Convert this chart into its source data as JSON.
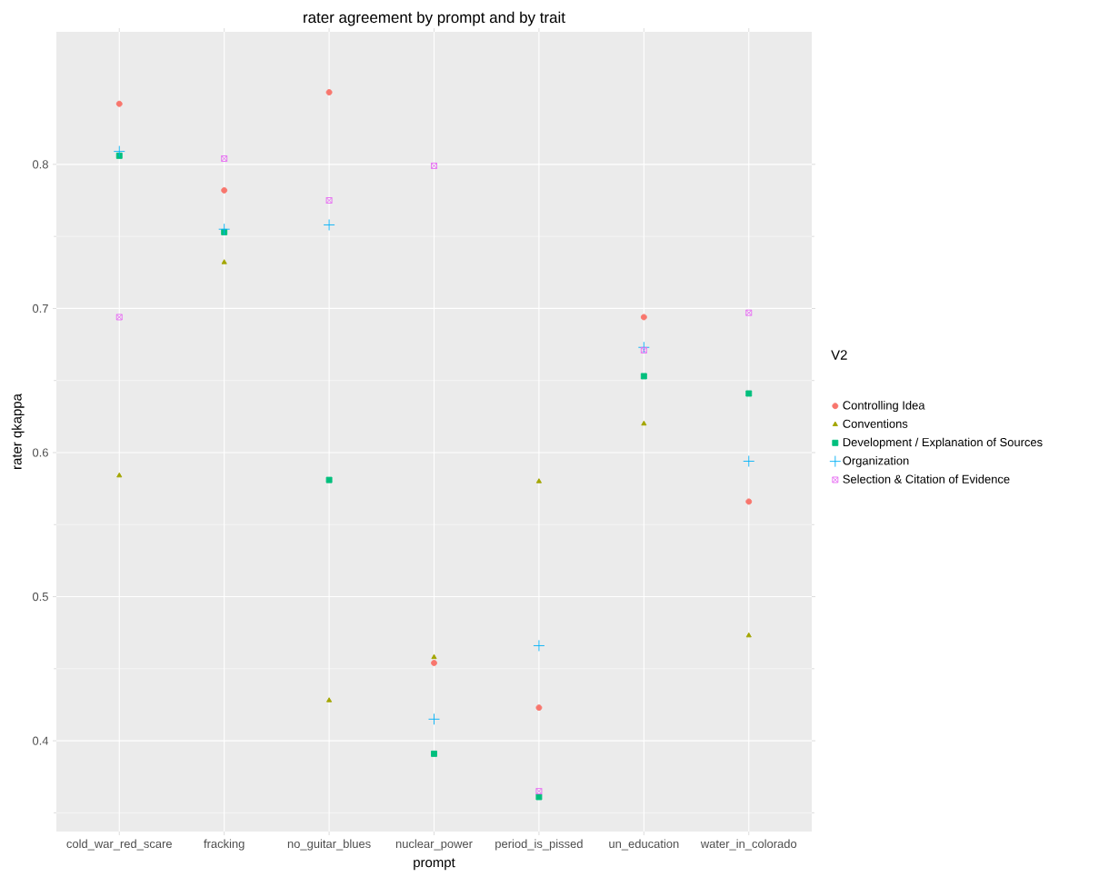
{
  "chart_data": {
    "type": "scatter",
    "title": "rater agreement by prompt and by trait",
    "xlabel": "prompt",
    "ylabel": "rater qkappa",
    "legend_title": "V2",
    "legend": "right",
    "grid": true,
    "categories": [
      "cold_war_red_scare",
      "fracking",
      "no_guitar_blues",
      "nuclear_power",
      "period_is_pissed",
      "un_education",
      "water_in_colorado"
    ],
    "ylim": [
      0.337,
      0.892
    ],
    "yticks": [
      0.4,
      0.5,
      0.6,
      0.7,
      0.8
    ],
    "series": [
      {
        "name": "Controlling Idea",
        "color": "#f8766d",
        "marker": "circle",
        "values": [
          0.842,
          0.782,
          0.85,
          0.454,
          0.423,
          0.694,
          0.566
        ]
      },
      {
        "name": "Conventions",
        "color": "#a3a500",
        "marker": "triangle",
        "values": [
          0.584,
          0.732,
          0.428,
          0.458,
          0.58,
          0.62,
          0.473
        ]
      },
      {
        "name": "Development / Explanation of Sources",
        "color": "#00bf7d",
        "marker": "square",
        "values": [
          0.806,
          0.753,
          0.581,
          0.391,
          0.361,
          0.653,
          0.641
        ]
      },
      {
        "name": "Organization",
        "color": "#00b0f6",
        "marker": "cross",
        "values": [
          0.809,
          0.755,
          0.758,
          0.415,
          0.466,
          0.673,
          0.594
        ]
      },
      {
        "name": "Selection & Citation of Evidence",
        "color": "#e76bf3",
        "marker": "cross",
        "values": [
          0.694,
          0.804,
          0.775,
          0.799,
          0.365,
          0.671,
          0.697
        ]
      }
    ]
  }
}
